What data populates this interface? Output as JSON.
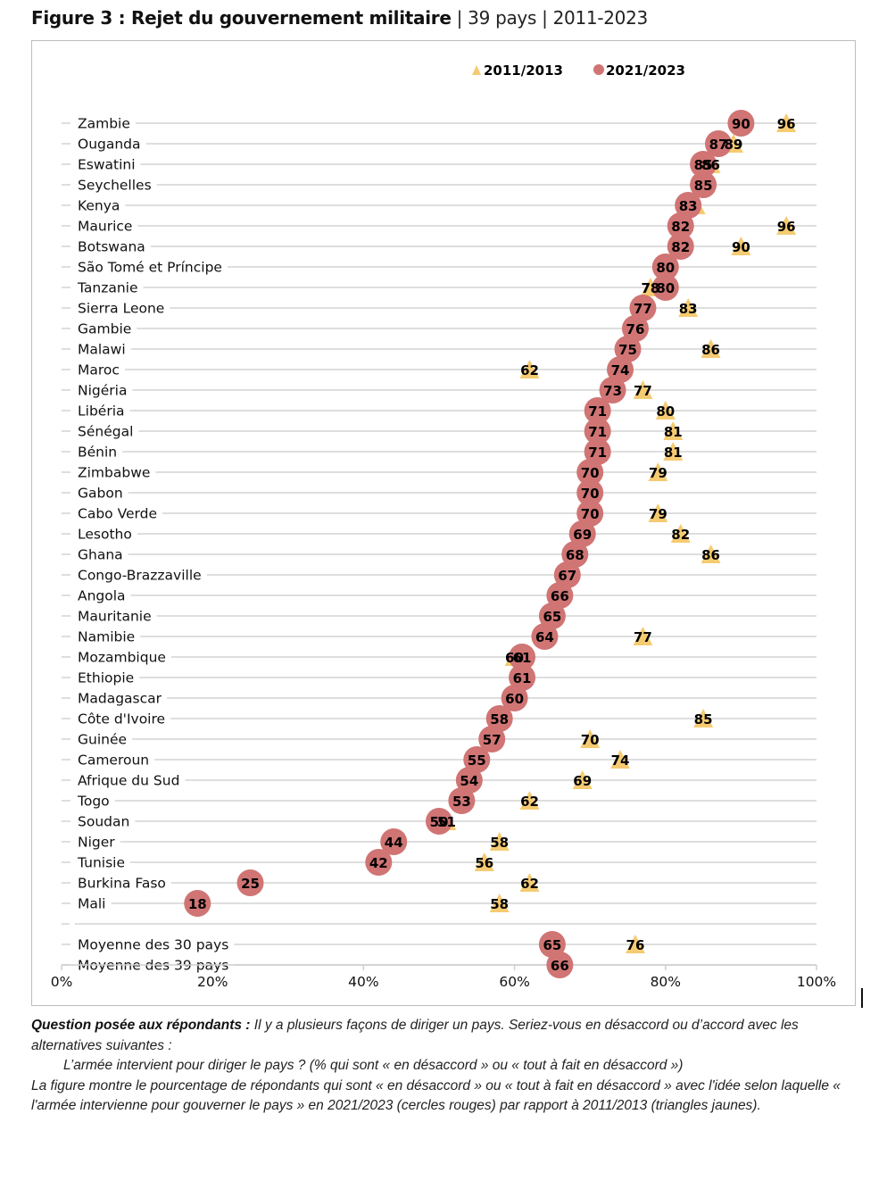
{
  "figure": {
    "title_bold": "Figure 3 : Rejet du gouvernement militaire",
    "title_rest": " | 39 pays | 2011-2023"
  },
  "colors": {
    "circle": "#d07474",
    "triangle": "#f5cb72",
    "gridline": "#dedede",
    "frame": "#bdbdbd"
  },
  "chart_data": {
    "type": "scatter",
    "title": "Rejet du gouvernement militaire",
    "xlabel": "",
    "ylabel": "",
    "xlim": [
      0,
      100
    ],
    "x_ticks": [
      "0%",
      "20%",
      "40%",
      "60%",
      "80%",
      "100%"
    ],
    "x_tick_values": [
      0,
      20,
      40,
      60,
      80,
      100
    ],
    "grid": true,
    "legend_position": "top-center",
    "legend": [
      {
        "name": "2011/2013",
        "marker": "triangle"
      },
      {
        "name": "2021/2023",
        "marker": "circle"
      }
    ],
    "categories": [
      "Zambie",
      "Ouganda",
      "Eswatini",
      "Seychelles",
      "Kenya",
      "Maurice",
      "Botswana",
      "São Tomé et Príncipe",
      "Tanzanie",
      "Sierra Leone",
      "Gambie",
      "Malawi",
      "Maroc",
      "Nigéria",
      "Libéria",
      "Sénégal",
      "Bénin",
      "Zimbabwe",
      "Gabon",
      "Cabo Verde",
      "Lesotho",
      "Ghana",
      "Congo-Brazzaville",
      "Angola",
      "Mauritanie",
      "Namibie",
      "Mozambique",
      "Ethiopie",
      "Madagascar",
      "Côte d'Ivoire",
      "Guinée",
      "Cameroun",
      "Afrique du Sud",
      "Togo",
      "Soudan",
      "Niger",
      "Tunisie",
      "Burkina Faso",
      "Mali"
    ],
    "series": [
      {
        "name": "2021/2023",
        "marker": "circle",
        "values": [
          90,
          87,
          85,
          85,
          83,
          82,
          82,
          80,
          80,
          77,
          76,
          75,
          74,
          73,
          71,
          71,
          71,
          70,
          70,
          70,
          69,
          68,
          67,
          66,
          65,
          64,
          61,
          61,
          60,
          58,
          57,
          55,
          54,
          53,
          50,
          44,
          42,
          25,
          18
        ]
      },
      {
        "name": "2011/2013",
        "marker": "triangle",
        "values": [
          96,
          89,
          86,
          null,
          84,
          96,
          90,
          null,
          78,
          83,
          null,
          86,
          62,
          77,
          80,
          81,
          81,
          79,
          null,
          79,
          82,
          86,
          null,
          null,
          null,
          77,
          60,
          null,
          null,
          85,
          70,
          74,
          69,
          62,
          51,
          58,
          56,
          62,
          58
        ],
        "label_hidden": [
          false,
          false,
          false,
          false,
          true,
          false,
          false,
          false,
          false,
          false,
          false,
          false,
          false,
          false,
          false,
          false,
          false,
          false,
          false,
          false,
          false,
          false,
          false,
          false,
          false,
          false,
          false,
          false,
          false,
          false,
          false,
          false,
          false,
          false,
          false,
          false,
          false,
          false,
          false
        ]
      }
    ],
    "averages": [
      {
        "label": "Moyenne des 30 pays",
        "circle": 65,
        "triangle": 76
      },
      {
        "label": "Moyenne des 39 pays",
        "circle": 66,
        "triangle": null
      }
    ]
  },
  "caption": {
    "question_label": "Question posée aux répondants :",
    "question_text": " Il y a plusieurs façons de diriger un pays. Seriez-vous en désaccord ou d’accord avec les alternatives suivantes :",
    "question_item": "L’armée intervient pour diriger le pays ? (% qui sont « en désaccord » ou « tout à fait en désaccord »)",
    "note": "La figure montre le pourcentage de répondants qui sont « en désaccord » ou « tout à fait en désaccord » avec l'idée selon laquelle « l'armée intervienne pour gouverner le pays » en 2021/2023 (cercles rouges) par rapport à 2011/2013 (triangles jaunes)."
  }
}
